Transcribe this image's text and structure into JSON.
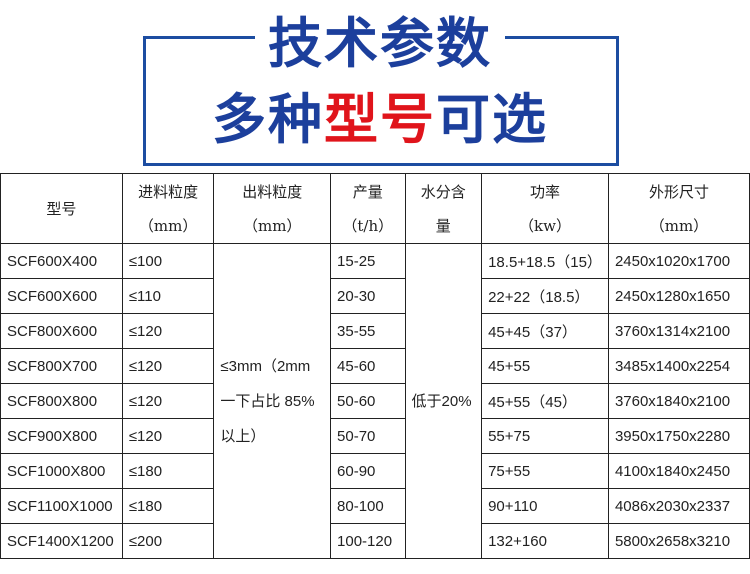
{
  "title": {
    "line1": "技术参数",
    "line2_a": "多种",
    "line2_b": "型号",
    "line2_c": "可选",
    "accent": "#1c3f9c",
    "highlight": "#e0141b"
  },
  "table": {
    "headers": [
      {
        "l1": "型号",
        "l2": ""
      },
      {
        "l1": "进料粒度",
        "l2": "（mm）"
      },
      {
        "l1": "出料粒度",
        "l2": "（mm）"
      },
      {
        "l1": "产量",
        "l2": "（t/h）"
      },
      {
        "l1": "水分含",
        "l2": "量"
      },
      {
        "l1": "功率",
        "l2": "（kw）"
      },
      {
        "l1": "外形尺寸",
        "l2": "（mm）"
      }
    ],
    "output_size": "≤3mm（2mm一下占比 85%以上）",
    "moisture": "低于20%",
    "rows": [
      {
        "model": "SCF600X400",
        "feed": "≤100",
        "capacity": "15-25",
        "power": "18.5+18.5（15）",
        "dims": "2450x1020x1700"
      },
      {
        "model": "SCF600X600",
        "feed": "≤110",
        "capacity": "20-30",
        "power": "22+22（18.5）",
        "dims": "2450x1280x1650"
      },
      {
        "model": "SCF800X600",
        "feed": "≤120",
        "capacity": "35-55",
        "power": "45+45（37）",
        "dims": "3760x1314x2100"
      },
      {
        "model": "SCF800X700",
        "feed": "≤120",
        "capacity": "45-60",
        "power": "45+55",
        "dims": "3485x1400x2254"
      },
      {
        "model": "SCF800X800",
        "feed": "≤120",
        "capacity": "50-60",
        "power": "45+55（45）",
        "dims": "3760x1840x2100"
      },
      {
        "model": "SCF900X800",
        "feed": "≤120",
        "capacity": "50-70",
        "power": "55+75",
        "dims": "3950x1750x2280"
      },
      {
        "model": "SCF1000X800",
        "feed": "≤180",
        "capacity": "60-90",
        "power": "75+55",
        "dims": "4100x1840x2450"
      },
      {
        "model": "SCF1100X1000",
        "feed": "≤180",
        "capacity": "80-100",
        "power": "90+110",
        "dims": "4086x2030x2337"
      },
      {
        "model": "SCF1400X1200",
        "feed": "≤200",
        "capacity": "100-120",
        "power": "132+160",
        "dims": "5800x2658x3210"
      }
    ]
  }
}
